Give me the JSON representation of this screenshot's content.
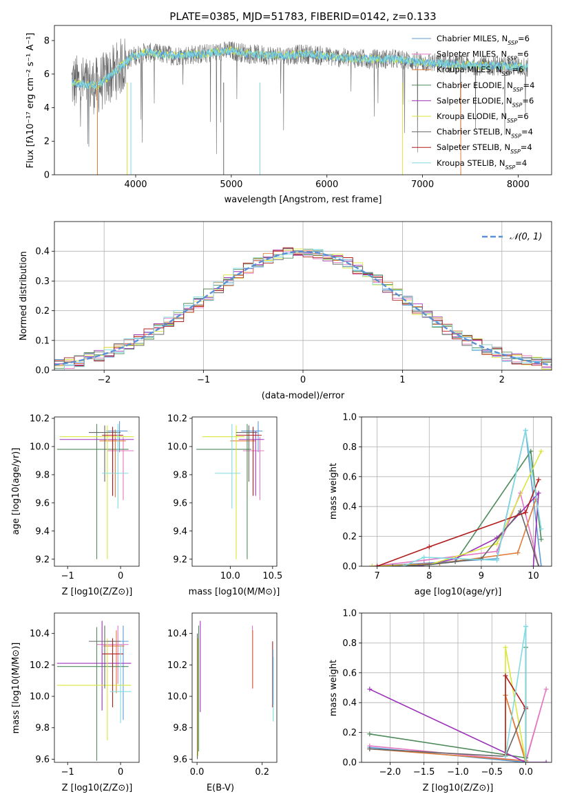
{
  "colors": {
    "chabrier_miles": "#5b9bd5",
    "salpeter_miles": "#e377c2",
    "kroupa_miles": "#e07b39",
    "chabrier_elodie": "#4f8a5b",
    "salpeter_elodie": "#9b30b8",
    "kroupa_elodie": "#d9e63a",
    "chabrier_stelib": "#666666",
    "salpeter_stelib": "#b01c1c",
    "kroupa_stelib": "#7fdbe0",
    "normal": "#5b8fd6"
  },
  "chart_data": [
    {
      "type": "line",
      "title": "PLATE=0385, MJD=51783, FIBERID=0142, z=0.133",
      "xlabel": "wavelength [Angstrom, rest frame]",
      "ylabel": "Flux [fλ10⁻¹⁷ erg cm⁻² s⁻¹ A⁻¹]",
      "xlim": [
        3150,
        8350
      ],
      "ylim": [
        0,
        8.9
      ],
      "xticks": [
        4000,
        5000,
        6000,
        7000,
        8000
      ],
      "yticks": [
        0,
        2,
        4,
        6,
        8
      ],
      "legend_position": "upper-right",
      "series": [
        {
          "name": "Chabrier MILES, N_SSP=6",
          "color_key": "chabrier_miles"
        },
        {
          "name": "Salpeter MILES, N_SSP=6",
          "color_key": "salpeter_miles"
        },
        {
          "name": "Kroupa MILES, N_SSP=6",
          "color_key": "kroupa_miles"
        },
        {
          "name": "Chabrier ELODIE, N_SSP=4",
          "color_key": "chabrier_elodie"
        },
        {
          "name": "Salpeter ELODIE, N_SSP=6",
          "color_key": "salpeter_elodie"
        },
        {
          "name": "Kroupa ELODIE, N_SSP=6",
          "color_key": "kroupa_elodie"
        },
        {
          "name": "Chabrier STELIB, N_SSP=4",
          "color_key": "chabrier_stelib"
        },
        {
          "name": "Salpeter STELIB, N_SSP=4",
          "color_key": "salpeter_stelib"
        },
        {
          "name": "Kroupa STELIB, N_SSP=4",
          "color_key": "kroupa_stelib"
        }
      ],
      "continuum": {
        "x": [
          3330,
          3450,
          3600,
          3800,
          3950,
          4100,
          4400,
          4700,
          5000,
          5200,
          5500,
          5800,
          6100,
          6400,
          6700,
          7000,
          7300,
          7600,
          7900,
          8100
        ],
        "y": [
          5.5,
          5.4,
          5.3,
          6.2,
          7.0,
          7.3,
          7.1,
          7.2,
          7.4,
          7.2,
          7.1,
          7.2,
          7.0,
          6.9,
          6.9,
          6.7,
          6.6,
          6.5,
          6.5,
          6.4
        ]
      }
    },
    {
      "type": "histogram",
      "xlabel": "(data-model)/error",
      "ylabel": "Normed distribution",
      "xlim": [
        -2.5,
        2.5
      ],
      "ylim": [
        0,
        0.5
      ],
      "xticks": [
        -2,
        -1,
        0,
        1,
        2
      ],
      "yticks": [
        0.0,
        0.1,
        0.2,
        0.3,
        0.4
      ],
      "grid": true,
      "legend_position": "upper-right",
      "reference_curve": {
        "name": "𝒩(0, 1)",
        "mean": 0,
        "sigma": 1,
        "style": "dashed"
      },
      "bin_width": 0.1
    },
    {
      "type": "scatter",
      "xlabel": "Z [log10(Z/Z⊙)]",
      "ylabel": "age  [log10(age/yr)]",
      "xlim": [
        -1.25,
        0.35
      ],
      "ylim": [
        9.15,
        10.21
      ],
      "xticks": [
        -1,
        0
      ],
      "yticks": [
        9.2,
        9.4,
        9.6,
        9.8,
        10.0,
        10.2
      ],
      "points": [
        {
          "x": -0.02,
          "y": 10.11,
          "xerr": [
            0.25,
            0.15
          ],
          "yerr": [
            0.15,
            0.07
          ],
          "color_key": "chabrier_miles"
        },
        {
          "x": 0.05,
          "y": 9.97,
          "xerr": [
            0.3,
            0.2
          ],
          "yerr": [
            0.35,
            0.1
          ],
          "color_key": "salpeter_miles"
        },
        {
          "x": -0.1,
          "y": 10.04,
          "xerr": [
            0.3,
            0.2
          ],
          "yerr": [
            0.4,
            0.08
          ],
          "color_key": "kroupa_miles"
        },
        {
          "x": -0.45,
          "y": 9.98,
          "xerr": [
            0.75,
            0.6
          ],
          "yerr": [
            0.78,
            0.18
          ],
          "color_key": "chabrier_elodie"
        },
        {
          "x": -0.15,
          "y": 10.05,
          "xerr": [
            1.0,
            0.4
          ],
          "yerr": [
            0.4,
            0.06
          ],
          "color_key": "salpeter_elodie"
        },
        {
          "x": -0.25,
          "y": 10.07,
          "xerr": [
            0.9,
            0.5
          ],
          "yerr": [
            0.87,
            0.08
          ],
          "color_key": "kroupa_elodie"
        },
        {
          "x": -0.3,
          "y": 10.1,
          "xerr": [
            0.3,
            0.3
          ],
          "yerr": [
            0.35,
            0.05
          ],
          "color_key": "chabrier_stelib"
        },
        {
          "x": -0.15,
          "y": 10.08,
          "xerr": [
            0.2,
            0.2
          ],
          "yerr": [
            0.43,
            0.06
          ],
          "color_key": "salpeter_stelib"
        },
        {
          "x": -0.05,
          "y": 9.81,
          "xerr": [
            0.3,
            0.2
          ],
          "yerr": [
            0.25,
            0.35
          ],
          "color_key": "kroupa_stelib"
        }
      ]
    },
    {
      "type": "scatter",
      "xlabel": "mass [log10(M/M⊙)]",
      "ylabel": "",
      "xlim": [
        9.55,
        10.55
      ],
      "ylim": [
        9.15,
        10.21
      ],
      "xticks": [
        10.0,
        10.5
      ],
      "yticks": [
        9.2,
        9.4,
        9.6,
        9.8,
        10.0,
        10.2
      ],
      "points": [
        {
          "x": 10.33,
          "y": 10.11,
          "xerr": [
            0.2,
            0.05
          ],
          "yerr": [
            0.15,
            0.07
          ],
          "color_key": "chabrier_miles"
        },
        {
          "x": 10.35,
          "y": 9.97,
          "xerr": [
            0.2,
            0.05
          ],
          "yerr": [
            0.35,
            0.1
          ],
          "color_key": "salpeter_miles"
        },
        {
          "x": 10.2,
          "y": 10.04,
          "xerr": [
            0.2,
            0.1
          ],
          "yerr": [
            0.4,
            0.08
          ],
          "color_key": "kroupa_miles"
        },
        {
          "x": 10.2,
          "y": 9.98,
          "xerr": [
            0.6,
            0.05
          ],
          "yerr": [
            0.78,
            0.18
          ],
          "color_key": "chabrier_elodie"
        },
        {
          "x": 10.3,
          "y": 10.05,
          "xerr": [
            0.2,
            0.1
          ],
          "yerr": [
            0.4,
            0.06
          ],
          "color_key": "salpeter_elodie"
        },
        {
          "x": 10.07,
          "y": 10.07,
          "xerr": [
            0.4,
            0.1
          ],
          "yerr": [
            0.87,
            0.08
          ],
          "color_key": "kroupa_elodie"
        },
        {
          "x": 10.22,
          "y": 10.1,
          "xerr": [
            0.15,
            0.1
          ],
          "yerr": [
            0.35,
            0.05
          ],
          "color_key": "chabrier_stelib"
        },
        {
          "x": 10.27,
          "y": 10.08,
          "xerr": [
            0.2,
            0.1
          ],
          "yerr": [
            0.43,
            0.06
          ],
          "color_key": "salpeter_stelib"
        },
        {
          "x": 10.02,
          "y": 9.81,
          "xerr": [
            0.2,
            0.1
          ],
          "yerr": [
            0.25,
            0.35
          ],
          "color_key": "kroupa_stelib"
        }
      ]
    },
    {
      "type": "line",
      "xlabel": "age  [log10(age/yr)]",
      "ylabel": "mass weight",
      "xlim": [
        6.7,
        10.35
      ],
      "ylim": [
        0,
        1.0
      ],
      "xticks": [
        7,
        8,
        9,
        10
      ],
      "yticks": [
        0.0,
        0.2,
        0.4,
        0.6,
        0.8,
        1.0
      ],
      "grid": true,
      "series": [
        {
          "color_key": "chabrier_miles",
          "x": [
            6.9,
            7.9,
            9.3,
            9.85,
            10.15
          ],
          "y": [
            0.0,
            0.02,
            0.05,
            0.91,
            0.0
          ]
        },
        {
          "color_key": "salpeter_miles",
          "x": [
            6.9,
            7.9,
            9.3,
            9.75,
            10.1
          ],
          "y": [
            0.0,
            0.04,
            0.1,
            0.49,
            0.0
          ]
        },
        {
          "color_key": "kroupa_miles",
          "x": [
            6.9,
            8.2,
            9.7,
            10.05
          ],
          "y": [
            0.0,
            0.02,
            0.09,
            0.45
          ]
        },
        {
          "color_key": "chabrier_elodie",
          "x": [
            7.6,
            8.5,
            9.95,
            10.15
          ],
          "y": [
            0.0,
            0.03,
            0.77,
            0.18
          ]
        },
        {
          "color_key": "salpeter_elodie",
          "x": [
            7.8,
            8.5,
            9.3,
            10.1,
            10.0
          ],
          "y": [
            0.0,
            0.05,
            0.19,
            0.49,
            0.0
          ]
        },
        {
          "color_key": "kroupa_elodie",
          "x": [
            6.9,
            8.0,
            9.3,
            10.15
          ],
          "y": [
            0.0,
            0.01,
            0.15,
            0.77
          ]
        },
        {
          "color_key": "chabrier_stelib",
          "x": [
            7.3,
            8.0,
            9.0,
            9.75,
            10.1
          ],
          "y": [
            0.0,
            0.01,
            0.05,
            0.37,
            0.0
          ]
        },
        {
          "color_key": "salpeter_stelib",
          "x": [
            7.0,
            8.0,
            9.85,
            10.1
          ],
          "y": [
            0.0,
            0.13,
            0.36,
            0.58
          ]
        },
        {
          "color_key": "kroupa_stelib",
          "x": [
            7.5,
            7.9,
            9.3,
            9.85,
            10.15
          ],
          "y": [
            0.0,
            0.06,
            0.04,
            0.91,
            0.25
          ]
        }
      ]
    },
    {
      "type": "scatter",
      "xlabel": "Z [log10(Z/Z⊙)]",
      "ylabel": "mass [log10(M/M⊙)]",
      "xlim": [
        -1.25,
        0.35
      ],
      "ylim": [
        9.58,
        10.53
      ],
      "xticks": [
        -1,
        0
      ],
      "yticks": [
        9.6,
        9.8,
        10.0,
        10.2,
        10.4
      ],
      "points": [
        {
          "x": 0.05,
          "y": 10.35,
          "xerr": [
            0.3,
            0.1
          ],
          "yerr": [
            0.5,
            0.1
          ],
          "color_key": "chabrier_miles"
        },
        {
          "x": -0.05,
          "y": 10.33,
          "xerr": [
            0.4,
            0.2
          ],
          "yerr": [
            0.25,
            0.12
          ],
          "color_key": "salpeter_miles"
        },
        {
          "x": -0.08,
          "y": 10.32,
          "xerr": [
            0.25,
            0.15
          ],
          "yerr": [
            0.3,
            0.1
          ],
          "color_key": "kroupa_miles"
        },
        {
          "x": -0.45,
          "y": 10.19,
          "xerr": [
            0.75,
            0.6
          ],
          "yerr": [
            0.6,
            0.25
          ],
          "color_key": "chabrier_elodie"
        },
        {
          "x": -0.35,
          "y": 10.21,
          "xerr": [
            0.85,
            0.55
          ],
          "yerr": [
            0.3,
            0.27
          ],
          "color_key": "salpeter_elodie"
        },
        {
          "x": -0.25,
          "y": 10.07,
          "xerr": [
            0.95,
            0.45
          ],
          "yerr": [
            0.35,
            0.3
          ],
          "color_key": "kroupa_elodie"
        },
        {
          "x": -0.3,
          "y": 10.35,
          "xerr": [
            0.3,
            0.3
          ],
          "yerr": [
            0.3,
            0.1
          ],
          "color_key": "chabrier_stelib"
        },
        {
          "x": -0.15,
          "y": 10.27,
          "xerr": [
            0.2,
            0.2
          ],
          "yerr": [
            0.34,
            0.1
          ],
          "color_key": "salpeter_stelib"
        },
        {
          "x": 0.0,
          "y": 10.03,
          "xerr": [
            0.2,
            0.2
          ],
          "yerr": [
            0.2,
            0.3
          ],
          "color_key": "kroupa_stelib"
        }
      ]
    },
    {
      "type": "scatter",
      "xlabel": "E(B-V)",
      "ylabel": "",
      "xlim": [
        -0.015,
        0.245
      ],
      "ylim": [
        9.58,
        10.53
      ],
      "xticks": [
        0.0,
        0.2
      ],
      "yticks": [
        9.6,
        9.8,
        10.0,
        10.2,
        10.4
      ],
      "points": [
        {
          "x": 0.005,
          "y": 10.2,
          "yerr": [
            0.55,
            0.25
          ],
          "color_key": "chabrier_elodie"
        },
        {
          "x": 0.01,
          "y": 10.2,
          "yerr": [
            0.3,
            0.28
          ],
          "color_key": "salpeter_elodie"
        },
        {
          "x": 0.003,
          "y": 10.07,
          "yerr": [
            0.45,
            0.3
          ],
          "color_key": "kroupa_elodie"
        },
        {
          "x": 0.001,
          "y": 10.1,
          "yerr": [
            0.5,
            0.3
          ],
          "color_key": "chabrier_stelib"
        },
        {
          "x": 0.17,
          "y": 10.3,
          "yerr": [
            0.25,
            0.15
          ],
          "color_key": "salpeter_miles"
        },
        {
          "x": 0.171,
          "y": 10.3,
          "yerr": [
            0.25,
            0.12
          ],
          "color_key": "kroupa_miles"
        },
        {
          "x": 0.232,
          "y": 10.27,
          "yerr": [
            0.34,
            0.08
          ],
          "color_key": "salpeter_stelib"
        },
        {
          "x": 0.234,
          "y": 10.1,
          "yerr": [
            0.26,
            0.15
          ],
          "color_key": "kroupa_stelib"
        },
        {
          "x": 0.233,
          "y": 10.2,
          "yerr": [
            0.25,
            0.1
          ],
          "color_key": "chabrier_miles"
        }
      ]
    },
    {
      "type": "line",
      "xlabel": "Z [log10(Z/Z⊙)]",
      "ylabel": "mass weight",
      "xlim": [
        -2.42,
        0.38
      ],
      "ylim": [
        0,
        1.0
      ],
      "xticks": [
        -2.0,
        -1.5,
        -1.0,
        -0.5,
        0.0
      ],
      "yticks": [
        0.0,
        0.2,
        0.4,
        0.6,
        0.8,
        1.0
      ],
      "grid": true,
      "series": [
        {
          "color_key": "chabrier_miles",
          "x": [
            -2.3,
            0.0,
            0.0,
            0.0
          ],
          "y": [
            0.1,
            0.0,
            0.91,
            0.0
          ]
        },
        {
          "color_key": "salpeter_miles",
          "x": [
            -2.3,
            0.0,
            0.3,
            0.0
          ],
          "y": [
            0.11,
            0.01,
            0.49,
            0.0
          ]
        },
        {
          "color_key": "kroupa_miles",
          "x": [
            -2.3,
            0.0,
            -0.3,
            0.0
          ],
          "y": [
            0.09,
            0.01,
            0.45,
            0.0
          ]
        },
        {
          "color_key": "chabrier_elodie",
          "x": [
            -2.3,
            0.0,
            0.0
          ],
          "y": [
            0.19,
            0.03,
            0.77
          ]
        },
        {
          "color_key": "salpeter_elodie",
          "x": [
            -2.3,
            0.0,
            0.3
          ],
          "y": [
            0.49,
            0.0,
            0.0
          ]
        },
        {
          "color_key": "kroupa_elodie",
          "x": [
            -0.3,
            -0.3,
            0.0
          ],
          "y": [
            0.05,
            0.77,
            0.0
          ]
        },
        {
          "color_key": "chabrier_stelib",
          "x": [
            -2.3,
            -0.3,
            0.0,
            0.0
          ],
          "y": [
            0.09,
            0.04,
            0.37,
            0.0
          ]
        },
        {
          "color_key": "salpeter_stelib",
          "x": [
            -0.3,
            -0.3,
            0.0
          ],
          "y": [
            0.05,
            0.58,
            0.36
          ]
        },
        {
          "color_key": "kroupa_stelib",
          "x": [
            -0.3,
            0.0,
            0.0
          ],
          "y": [
            0.04,
            0.91,
            0.0
          ]
        }
      ]
    }
  ]
}
